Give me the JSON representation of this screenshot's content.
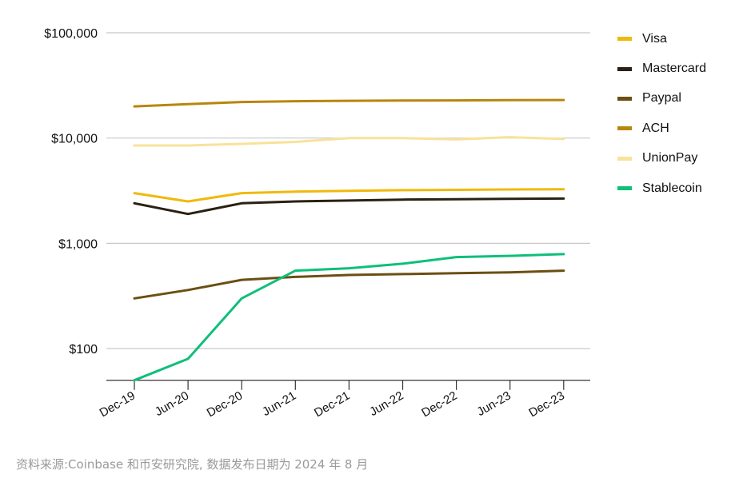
{
  "chart_data": {
    "type": "line",
    "title": "",
    "xlabel": "",
    "ylabel": "",
    "y_scale": "log",
    "ylim": [
      50,
      100000
    ],
    "grid": "horizontal",
    "legend_position": "right",
    "y_ticks": [
      {
        "value": 100,
        "label": "$100"
      },
      {
        "value": 1000,
        "label": "$1,000"
      },
      {
        "value": 10000,
        "label": "$10,000"
      },
      {
        "value": 100000,
        "label": "$100,000"
      }
    ],
    "categories": [
      "Dec-19",
      "Jun-20",
      "Dec-20",
      "Jun-21",
      "Dec-21",
      "Jun-22",
      "Dec-22",
      "Jun-23",
      "Dec-23"
    ],
    "series": [
      {
        "name": "Visa",
        "color": "#f0b90b",
        "values": [
          3000,
          2500,
          3000,
          3100,
          3150,
          3200,
          3220,
          3250,
          3260
        ]
      },
      {
        "name": "Mastercard",
        "color": "#2b2012",
        "values": [
          2400,
          1900,
          2400,
          2500,
          2550,
          2600,
          2620,
          2650,
          2660
        ]
      },
      {
        "name": "Paypal",
        "color": "#6b4f12",
        "values": [
          300,
          360,
          450,
          480,
          500,
          510,
          520,
          530,
          550
        ]
      },
      {
        "name": "ACH",
        "color": "#b8860b",
        "values": [
          20000,
          21000,
          22000,
          22400,
          22600,
          22700,
          22800,
          22900,
          23000
        ]
      },
      {
        "name": "UnionPay",
        "color": "#f8e29a",
        "values": [
          8500,
          8500,
          8800,
          9200,
          10000,
          10000,
          9700,
          10200,
          9800
        ]
      },
      {
        "name": "Stablecoin",
        "color": "#0ebf7a",
        "values": [
          50,
          80,
          300,
          550,
          580,
          640,
          740,
          760,
          790
        ]
      }
    ]
  },
  "source_note": "资料来源:Coinbase 和币安研究院, 数据发布日期为 2024 年 8 月"
}
